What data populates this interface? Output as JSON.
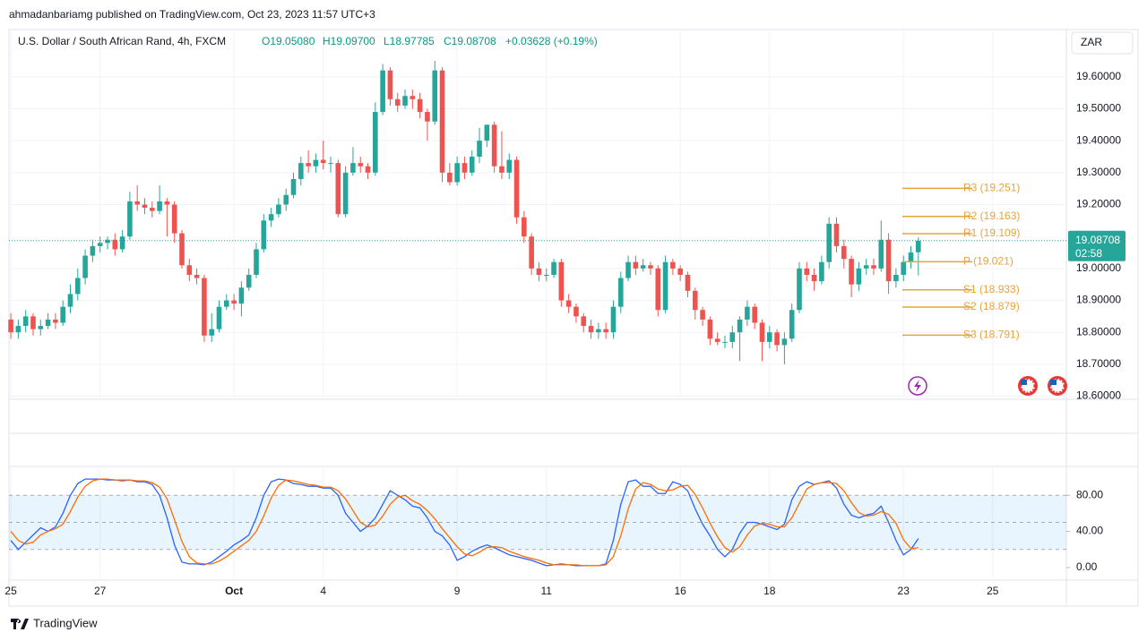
{
  "header": {
    "attribution": "ahmadanbariamg published on TradingView.com, Oct 23, 2023 11:57 UTC+3",
    "symbol": "U.S. Dollar / South African Rand, 4h, FXCM",
    "open": "O19.05080",
    "high": "H19.09700",
    "low": "L18.97785",
    "close": "C19.08708",
    "change": "+0.03628 (+0.19%)",
    "currency": "ZAR",
    "countdown": "02:58"
  },
  "footer": {
    "brand": "TradingView"
  },
  "chart_data": [
    {
      "type": "candlestick",
      "open": [
        18.84,
        18.8,
        18.82,
        18.85,
        18.81,
        18.82,
        18.84,
        18.83,
        18.88,
        18.92,
        18.97,
        19.04,
        19.07,
        19.08,
        19.09,
        19.06,
        19.1,
        19.21,
        19.2,
        19.19,
        19.18,
        19.21,
        19.2,
        19.11,
        19.01,
        18.98,
        18.97,
        18.79,
        18.81,
        18.88,
        18.9,
        18.89,
        18.94,
        18.98,
        19.06,
        19.15,
        19.17,
        19.2,
        19.23,
        19.28,
        19.33,
        19.32,
        19.34,
        19.33,
        19.33,
        19.17,
        19.3,
        19.33,
        19.32,
        19.3,
        19.49,
        19.62,
        19.53,
        19.51,
        19.54,
        19.53,
        19.49,
        19.46,
        19.62,
        19.3,
        19.27,
        19.33,
        19.3,
        19.35,
        19.4,
        19.45,
        19.32,
        19.3,
        19.34,
        19.16,
        19.1,
        19.0,
        18.98,
        18.98,
        19.02,
        18.9,
        18.88,
        18.85,
        18.82,
        18.8,
        18.81,
        18.8,
        18.88,
        18.97,
        19.02,
        19.0,
        19.01,
        19.0,
        18.87,
        19.02,
        19.0,
        18.98,
        18.93,
        18.87,
        18.84,
        18.78,
        18.77,
        18.77,
        18.8,
        18.84,
        18.88,
        18.83,
        18.77,
        18.8,
        18.76,
        18.78,
        18.87,
        19.0,
        18.98,
        18.96,
        19.02,
        19.14,
        19.07,
        19.03,
        18.95,
        19.0,
        19.01,
        19.0,
        19.09,
        18.96,
        18.98,
        19.02,
        19.0508
      ],
      "high": [
        18.86,
        18.84,
        18.87,
        18.86,
        18.84,
        18.86,
        18.86,
        18.9,
        18.95,
        19.0,
        19.06,
        19.09,
        19.1,
        19.1,
        19.11,
        19.12,
        19.24,
        19.26,
        19.22,
        19.21,
        19.26,
        19.22,
        19.21,
        19.12,
        19.03,
        19.0,
        18.98,
        18.86,
        18.9,
        18.92,
        18.92,
        18.96,
        19.0,
        19.08,
        19.17,
        19.19,
        19.22,
        19.25,
        19.3,
        19.35,
        19.37,
        19.36,
        19.4,
        19.35,
        19.34,
        19.32,
        19.38,
        19.35,
        19.33,
        19.52,
        19.64,
        19.63,
        19.55,
        19.56,
        19.56,
        19.55,
        19.5,
        19.65,
        19.63,
        19.33,
        19.35,
        19.35,
        19.37,
        19.44,
        19.45,
        19.46,
        19.43,
        19.36,
        19.35,
        19.18,
        19.11,
        19.02,
        19.0,
        19.03,
        19.03,
        18.92,
        18.89,
        18.86,
        18.84,
        18.83,
        18.83,
        18.9,
        18.99,
        19.04,
        19.04,
        19.03,
        19.02,
        19.01,
        19.04,
        19.03,
        19.01,
        18.99,
        18.94,
        18.88,
        18.85,
        18.8,
        18.79,
        18.82,
        18.85,
        18.9,
        18.89,
        18.84,
        18.82,
        18.81,
        18.8,
        18.89,
        19.02,
        19.02,
        19.0,
        19.04,
        19.16,
        19.16,
        19.09,
        19.04,
        19.02,
        19.03,
        19.03,
        19.15,
        19.11,
        19.0,
        19.04,
        19.07,
        19.097
      ],
      "low": [
        18.78,
        18.78,
        18.8,
        18.79,
        18.79,
        18.81,
        18.81,
        18.82,
        18.86,
        18.9,
        18.95,
        19.02,
        19.05,
        19.06,
        19.04,
        19.05,
        19.09,
        19.18,
        19.17,
        19.16,
        19.17,
        19.1,
        19.08,
        19.0,
        18.96,
        18.95,
        18.77,
        18.77,
        18.8,
        18.87,
        18.87,
        18.85,
        18.93,
        18.97,
        19.05,
        19.13,
        19.16,
        19.18,
        19.22,
        19.26,
        19.3,
        19.3,
        19.31,
        19.3,
        19.16,
        19.16,
        19.29,
        19.3,
        19.28,
        19.29,
        19.48,
        19.51,
        19.49,
        19.5,
        19.5,
        19.47,
        19.4,
        19.45,
        19.27,
        19.26,
        19.26,
        19.28,
        19.29,
        19.33,
        19.38,
        19.3,
        19.28,
        19.28,
        19.14,
        19.08,
        18.98,
        18.96,
        18.96,
        18.97,
        18.88,
        18.86,
        18.83,
        18.8,
        18.78,
        18.78,
        18.78,
        18.78,
        18.86,
        18.96,
        18.98,
        18.99,
        18.98,
        18.85,
        18.86,
        18.98,
        18.96,
        18.91,
        18.84,
        18.82,
        18.76,
        18.76,
        18.75,
        18.75,
        18.71,
        18.82,
        18.81,
        18.71,
        18.75,
        18.74,
        18.7,
        18.77,
        18.86,
        18.96,
        18.93,
        18.95,
        19.0,
        19.05,
        19.0,
        18.91,
        18.93,
        18.98,
        18.98,
        18.99,
        18.92,
        18.94,
        18.96,
        19.0,
        18.97785
      ],
      "close": [
        18.8,
        18.82,
        18.85,
        18.81,
        18.82,
        18.84,
        18.83,
        18.88,
        18.92,
        18.97,
        19.04,
        19.07,
        19.08,
        19.09,
        19.06,
        19.1,
        19.21,
        19.2,
        19.19,
        19.18,
        19.21,
        19.2,
        19.11,
        19.01,
        18.98,
        18.97,
        18.79,
        18.81,
        18.88,
        18.9,
        18.89,
        18.94,
        18.98,
        19.06,
        19.15,
        19.17,
        19.2,
        19.23,
        19.28,
        19.33,
        19.32,
        19.34,
        19.33,
        19.33,
        19.17,
        19.3,
        19.33,
        19.32,
        19.3,
        19.49,
        19.62,
        19.53,
        19.51,
        19.54,
        19.53,
        19.49,
        19.46,
        19.62,
        19.3,
        19.27,
        19.33,
        19.3,
        19.35,
        19.4,
        19.45,
        19.32,
        19.3,
        19.34,
        19.16,
        19.1,
        19.0,
        18.98,
        18.98,
        19.02,
        18.9,
        18.88,
        18.85,
        18.82,
        18.8,
        18.81,
        18.8,
        18.88,
        18.97,
        19.02,
        19.0,
        19.01,
        19.0,
        18.87,
        19.02,
        19.0,
        18.98,
        18.93,
        18.87,
        18.84,
        18.78,
        18.77,
        18.77,
        18.8,
        18.84,
        18.88,
        18.83,
        18.77,
        18.8,
        18.76,
        18.78,
        18.87,
        19.0,
        18.98,
        18.96,
        19.02,
        19.14,
        19.07,
        19.03,
        18.95,
        19.0,
        19.01,
        19.0,
        19.09,
        18.96,
        18.98,
        19.02,
        19.05,
        19.08708
      ],
      "up_color": "#26a69a",
      "down_color": "#ef5350",
      "ylim": [
        18.596,
        19.748
      ],
      "yticks": [
        {
          "value": 19.6,
          "label": "19.60000"
        },
        {
          "value": 19.5,
          "label": "19.50000"
        },
        {
          "value": 19.4,
          "label": "19.40000"
        },
        {
          "value": 19.3,
          "label": "19.30000"
        },
        {
          "value": 19.2,
          "label": "19.20000"
        },
        {
          "value": 19.0,
          "label": "19.00000"
        },
        {
          "value": 18.9,
          "label": "18.90000"
        },
        {
          "value": 18.8,
          "label": "18.80000"
        },
        {
          "value": 18.7,
          "label": "18.70000"
        },
        {
          "value": 18.6,
          "label": "18.60000"
        }
      ],
      "xlim": [
        -0.25,
        141.9
      ],
      "xticks": [
        {
          "value": 0,
          "label": "25"
        },
        {
          "value": 12,
          "label": "27"
        },
        {
          "value": 30,
          "label": "Oct"
        },
        {
          "value": 42,
          "label": "4"
        },
        {
          "value": 60,
          "label": "9"
        },
        {
          "value": 72,
          "label": "11"
        },
        {
          "value": 90,
          "label": "16"
        },
        {
          "value": 102,
          "label": "18"
        },
        {
          "value": 120,
          "label": "23"
        },
        {
          "value": 132,
          "label": "25"
        }
      ],
      "last_price_label": "19.08708",
      "pivot_color": "#e8a33c",
      "pivots": [
        {
          "value": 19.251,
          "label": "R3 (19.251)"
        },
        {
          "value": 19.163,
          "label": "R2 (19.163)"
        },
        {
          "value": 19.109,
          "label": "R1 (19.109)"
        },
        {
          "value": 19.021,
          "label": "P (19.021)"
        },
        {
          "value": 18.933,
          "label": "S1 (18.933)"
        },
        {
          "value": 18.879,
          "label": "S2 (18.879)"
        },
        {
          "value": 18.791,
          "label": "S3 (18.791)"
        }
      ],
      "grid": true
    },
    {
      "type": "line",
      "series": [
        {
          "color": "#2962ff",
          "values": [
            30,
            20,
            28,
            36,
            44,
            40,
            45,
            60,
            80,
            93,
            98,
            98,
            98,
            97,
            97,
            96,
            97,
            95,
            95,
            92,
            80,
            55,
            25,
            6,
            4,
            4,
            3,
            6,
            12,
            18,
            25,
            30,
            36,
            55,
            80,
            95,
            98,
            97,
            93,
            92,
            90,
            90,
            88,
            88,
            80,
            60,
            50,
            40,
            46,
            55,
            70,
            85,
            80,
            75,
            68,
            66,
            55,
            40,
            35,
            25,
            8,
            12,
            18,
            22,
            25,
            22,
            18,
            14,
            12,
            10,
            8,
            5,
            2,
            3,
            4,
            3,
            2,
            2,
            2,
            2,
            4,
            30,
            70,
            95,
            97,
            90,
            90,
            82,
            82,
            95,
            92,
            85,
            65,
            48,
            35,
            20,
            12,
            20,
            38,
            50,
            50,
            48,
            45,
            42,
            48,
            75,
            90,
            95,
            92,
            94,
            96,
            88,
            70,
            58,
            55,
            58,
            60,
            68,
            50,
            30,
            14,
            20,
            32
          ]
        },
        {
          "color": "#ff6d00",
          "values": [
            40,
            30,
            26,
            28,
            36,
            40,
            43,
            48,
            62,
            78,
            90,
            96,
            98,
            98,
            97,
            97,
            97,
            96,
            96,
            94,
            89,
            76,
            53,
            29,
            12,
            5,
            4,
            4,
            7,
            12,
            18,
            24,
            30,
            40,
            57,
            77,
            91,
            97,
            96,
            94,
            92,
            91,
            89,
            89,
            85,
            76,
            63,
            50,
            45,
            47,
            57,
            70,
            78,
            80,
            74,
            70,
            63,
            54,
            43,
            33,
            23,
            15,
            13,
            17,
            22,
            23,
            22,
            18,
            15,
            12,
            10,
            8,
            5,
            3,
            3,
            3,
            3,
            2,
            2,
            2,
            3,
            12,
            35,
            65,
            87,
            94,
            92,
            87,
            85,
            86,
            90,
            91,
            81,
            66,
            49,
            34,
            22,
            17,
            23,
            36,
            46,
            49,
            48,
            45,
            45,
            55,
            71,
            87,
            92,
            94,
            94,
            93,
            85,
            72,
            61,
            57,
            58,
            62,
            59,
            49,
            31,
            21,
            22
          ]
        }
      ],
      "ylim": [
        -14,
        112
      ],
      "yticks": [
        {
          "value": 80,
          "label": "80.00"
        },
        {
          "value": 40,
          "label": "40.00"
        },
        {
          "value": 0,
          "label": "0.00"
        }
      ],
      "band": [
        20,
        80
      ],
      "midline": 50,
      "band_color": "#2196f3"
    }
  ]
}
